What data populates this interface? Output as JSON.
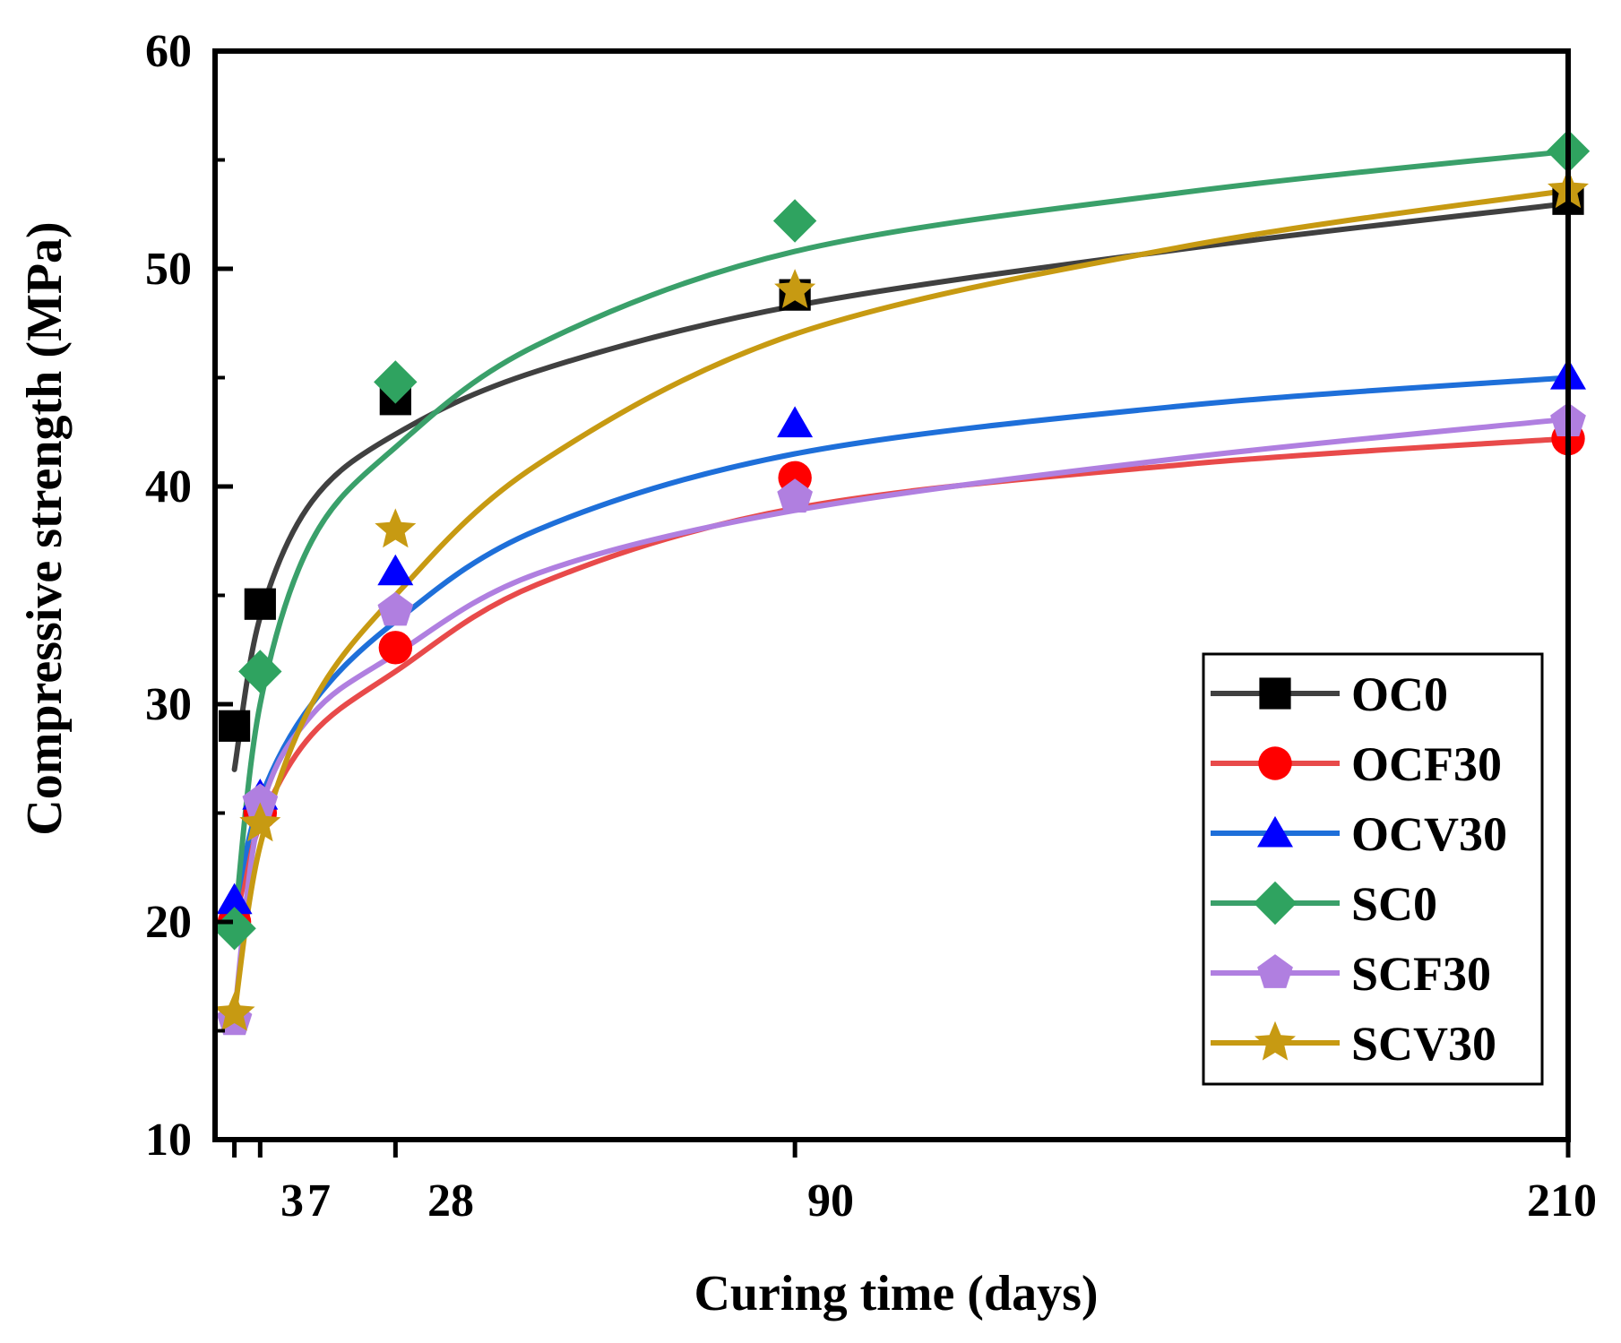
{
  "chart_data": {
    "type": "scatter",
    "title": "",
    "xlabel": "Curing time (days)",
    "ylabel": "Compressive strength (MPa)",
    "xlim": [
      0,
      210
    ],
    "ylim": [
      10,
      60
    ],
    "yticks": [
      10,
      20,
      30,
      40,
      50,
      60
    ],
    "xticks": [
      3,
      7,
      28,
      90,
      210
    ],
    "xtick_labels": [
      "3",
      "7",
      "28",
      "90",
      "210"
    ],
    "x": [
      3,
      7,
      28,
      90,
      210
    ],
    "legend_position": "bottom-right",
    "series": [
      {
        "name": "OC0",
        "marker": "square",
        "color": "#000000",
        "line_color": "#404040",
        "values": [
          29.0,
          34.6,
          44.0,
          48.8,
          53.2
        ],
        "fit": [
          [
            3,
            27.0
          ],
          [
            7,
            34.0
          ],
          [
            15,
            39.3
          ],
          [
            28,
            42.4
          ],
          [
            50,
            45.3
          ],
          [
            90,
            48.3
          ],
          [
            150,
            50.9
          ],
          [
            210,
            53.0
          ]
        ]
      },
      {
        "name": "OCF30",
        "marker": "circle",
        "color": "#ff0000",
        "line_color": "#e84a4a",
        "values": [
          20.0,
          25.0,
          32.6,
          40.4,
          42.2
        ],
        "fit": [
          [
            3,
            19.8
          ],
          [
            7,
            24.5
          ],
          [
            15,
            28.6
          ],
          [
            28,
            31.5
          ],
          [
            50,
            35.5
          ],
          [
            90,
            39.0
          ],
          [
            150,
            41.0
          ],
          [
            210,
            42.2
          ]
        ]
      },
      {
        "name": "OCV30",
        "marker": "triangle",
        "color": "#0000ff",
        "line_color": "#1e6fd9",
        "values": [
          21.0,
          25.8,
          36.1,
          42.9,
          45.1
        ],
        "fit": [
          [
            3,
            20.5
          ],
          [
            7,
            25.6
          ],
          [
            15,
            30.0
          ],
          [
            28,
            33.8
          ],
          [
            50,
            38.0
          ],
          [
            90,
            41.5
          ],
          [
            150,
            43.7
          ],
          [
            210,
            45.0
          ]
        ]
      },
      {
        "name": "SC0",
        "marker": "diamond",
        "color": "#2fa360",
        "line_color": "#3aa06a",
        "values": [
          19.7,
          31.5,
          44.8,
          52.2,
          55.4
        ],
        "fit": [
          [
            3,
            19.8
          ],
          [
            7,
            30.0
          ],
          [
            15,
            37.5
          ],
          [
            28,
            41.8
          ],
          [
            50,
            46.5
          ],
          [
            90,
            50.8
          ],
          [
            150,
            53.5
          ],
          [
            210,
            55.4
          ]
        ]
      },
      {
        "name": "SCF30",
        "marker": "pentagon",
        "color": "#b07fe0",
        "line_color": "#b07fe0",
        "values": [
          15.5,
          25.5,
          34.3,
          39.5,
          43.0
        ],
        "fit": [
          [
            3,
            15.7
          ],
          [
            7,
            25.0
          ],
          [
            15,
            29.5
          ],
          [
            28,
            32.3
          ],
          [
            50,
            36.0
          ],
          [
            90,
            38.9
          ],
          [
            150,
            41.3
          ],
          [
            210,
            43.1
          ]
        ]
      },
      {
        "name": "SCV30",
        "marker": "star",
        "color": "#c79a12",
        "line_color": "#c79a12",
        "values": [
          15.8,
          24.5,
          38.0,
          49.0,
          53.6
        ],
        "fit": [
          [
            3,
            15.8
          ],
          [
            7,
            23.5
          ],
          [
            15,
            30.0
          ],
          [
            28,
            35.0
          ],
          [
            50,
            41.0
          ],
          [
            90,
            47.0
          ],
          [
            150,
            51.0
          ],
          [
            210,
            53.6
          ]
        ]
      }
    ]
  }
}
